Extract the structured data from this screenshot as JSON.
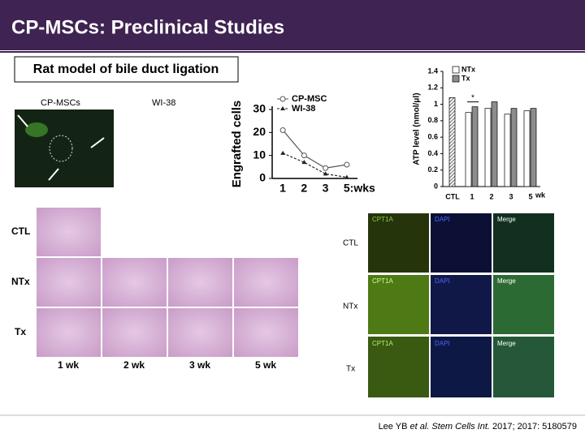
{
  "title": "CP-MSCs: Preclinical Studies",
  "subtitle": "Rat model of bile duct ligation",
  "panel_labels": [
    "CP-MSCs",
    "WI-38"
  ],
  "histology": {
    "rows": [
      "CTL",
      "NTx",
      "Tx"
    ],
    "columns": [
      "1 wk",
      "2 wk",
      "3 wk",
      "5 wk"
    ]
  },
  "immuno": {
    "rows": [
      "CTL",
      "NTx",
      "Tx"
    ],
    "columns": [
      "CPT1A",
      "DAPI",
      "Merge"
    ]
  },
  "citation": [
    "Lee YB ",
    "et al. Stem Cells Int.",
    " 2017; 2017: 5180579"
  ],
  "chart_data": [
    {
      "type": "line",
      "y_label": "Engrafted cells",
      "categories": [
        "1",
        "2",
        "3",
        "5:wks"
      ],
      "series": [
        {
          "name": "CP-MSC",
          "color": "#555555",
          "values": [
            21,
            10,
            4.5,
            6
          ]
        },
        {
          "name": "WI-38",
          "color": "#222222",
          "values": [
            11,
            7,
            2,
            0.5
          ]
        }
      ],
      "ylim": [
        0,
        30
      ],
      "yticks": [
        0,
        10,
        20,
        30
      ]
    },
    {
      "type": "bar",
      "y_label": "ATP level (nmol/μl)",
      "x_label": "wk",
      "categories": [
        "CTL",
        "1",
        "2",
        "3",
        "5"
      ],
      "series": [
        {
          "name": "NTx",
          "color": "#ffffff",
          "values": [
            null,
            0.9,
            0.95,
            0.88,
            0.92
          ]
        },
        {
          "name": "Tx",
          "color": "#8c8c8c",
          "values": [
            null,
            0.97,
            1.03,
            0.95,
            0.95
          ]
        },
        {
          "color": "#d0d0d0",
          "pattern": "hatched",
          "values": [
            1.08,
            null,
            null,
            null,
            null
          ]
        }
      ],
      "annotation": "*",
      "legend": "top-left",
      "ylim": [
        0,
        1.4
      ],
      "yticks": [
        0,
        0.2,
        0.4,
        0.6,
        0.8,
        1,
        1.2,
        1.4
      ]
    }
  ]
}
